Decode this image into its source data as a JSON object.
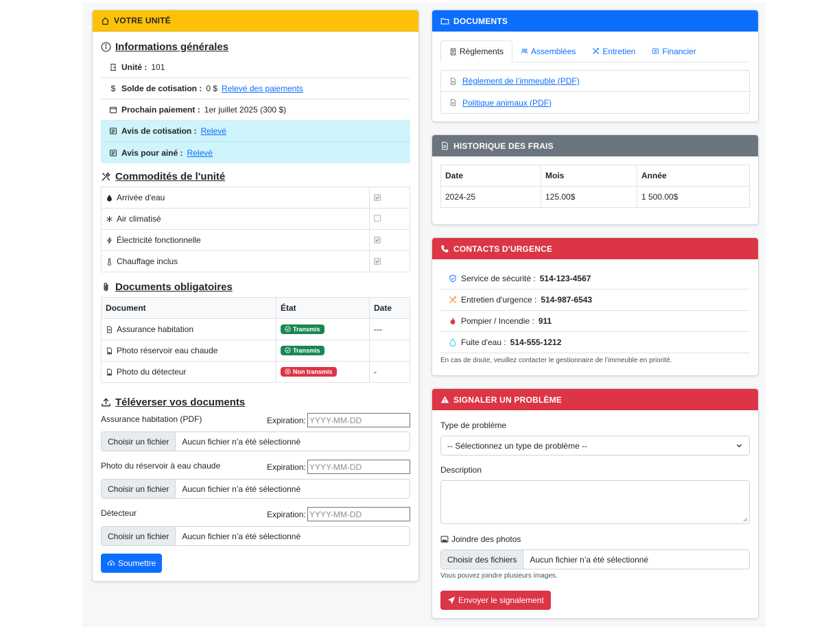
{
  "unit_card": {
    "header": "VOTRE UNITÉ",
    "general_info": {
      "title": "Informations générales",
      "unit_label": "Unité :",
      "unit_value": "101",
      "balance_label": "Solde de cotisation :",
      "balance_value": "0 $",
      "balance_link": "Relevé des paiements",
      "next_payment_label": "Prochain paiement :",
      "next_payment_value": "1er juillet 2025 (300 $)",
      "notice_label": "Avis de cotisation :",
      "notice_link": "Relevé",
      "senior_label": "Avis pour ainé :",
      "senior_link": "Relevé"
    },
    "amenities": {
      "title": "Commodités de l'unité",
      "items": [
        {
          "label": "Arrivée d'eau",
          "icon": "droplet-icon",
          "checked": true
        },
        {
          "label": "Air climatisé",
          "icon": "snowflake-icon",
          "checked": false
        },
        {
          "label": "Électricité fonctionnelle",
          "icon": "lightning-icon",
          "checked": true
        },
        {
          "label": "Chauffage inclus",
          "icon": "thermometer-icon",
          "checked": true
        }
      ]
    },
    "required_docs": {
      "title": "Documents obligatoires",
      "columns": [
        "Document",
        "État",
        "Date"
      ],
      "rows": [
        {
          "document": "Assurance habitation",
          "status": "Transmis",
          "status_color": "#198754",
          "date": "---"
        },
        {
          "document": "Photo réservoir eau chaude",
          "status": "Transmis",
          "status_color": "#198754",
          "date": ""
        },
        {
          "document": "Photo du détecteur",
          "status": "Non transmis",
          "status_color": "#dc3545",
          "date": "-"
        }
      ]
    },
    "upload": {
      "title": "Téléverser vos documents",
      "expiration_label": "Expiration:",
      "date_placeholder": "YYYY-MM-DD",
      "file_button": "Choisir un fichier",
      "no_file": "Aucun fichier n’a été sélectionné",
      "fields": [
        {
          "label": "Assurance habitation (PDF)"
        },
        {
          "label": "Photo du réservoir à eau chaude"
        },
        {
          "label": "Détecteur"
        }
      ],
      "submit": "Soumettre"
    }
  },
  "documents_card": {
    "header": "DOCUMENTS",
    "tabs": [
      "Règlements",
      "Assemblées",
      "Entretien",
      "Financier"
    ],
    "active_tab": "Règlements",
    "links": [
      "Règlement de l’immeuble (PDF)",
      "Politique animaux (PDF)"
    ]
  },
  "fees_card": {
    "header": "HISTORIQUE DES FRAIS",
    "columns": [
      "Date",
      "Mois",
      "Année"
    ],
    "rows": [
      [
        "2024-25",
        "125.00$",
        "1 500.00$"
      ]
    ]
  },
  "emergency_card": {
    "header": "CONTACTS D'URGENCE",
    "contacts": [
      {
        "label": "Service de sécurité :",
        "phone": "514-123-4567",
        "icon": "shield-icon"
      },
      {
        "label": "Entretien d'urgence :",
        "phone": "514-987-6543",
        "icon": "tools-icon"
      },
      {
        "label": "Pompier / Incendie :",
        "phone": "911",
        "icon": "fire-icon"
      },
      {
        "label": "Fuite d'eau :",
        "phone": "514-555-1212",
        "icon": "droplet-icon"
      }
    ],
    "note": "En cas de doute, veuillez contacter le gestionnaire de l’immeuble en priorité."
  },
  "report_card": {
    "header": "SIGNALER UN PROBLÈME",
    "type_label": "Type de problème",
    "type_selected": "-- Sélectionnez un type de problème --",
    "description_label": "Description",
    "photos_label": "Joindre des photos",
    "photos_button": "Choisir des fichiers",
    "no_file": "Aucun fichier n’a été sélectionné",
    "photos_help": "Vous pouvez joindre plusieurs images.",
    "submit": "Envoyer le signalement"
  },
  "colors": {
    "yellow_header": "#ffc107",
    "blue_header": "#0d6efd",
    "gray_header": "#6c757d",
    "red_header": "#dc3545",
    "info_row": "#cff4fc"
  }
}
